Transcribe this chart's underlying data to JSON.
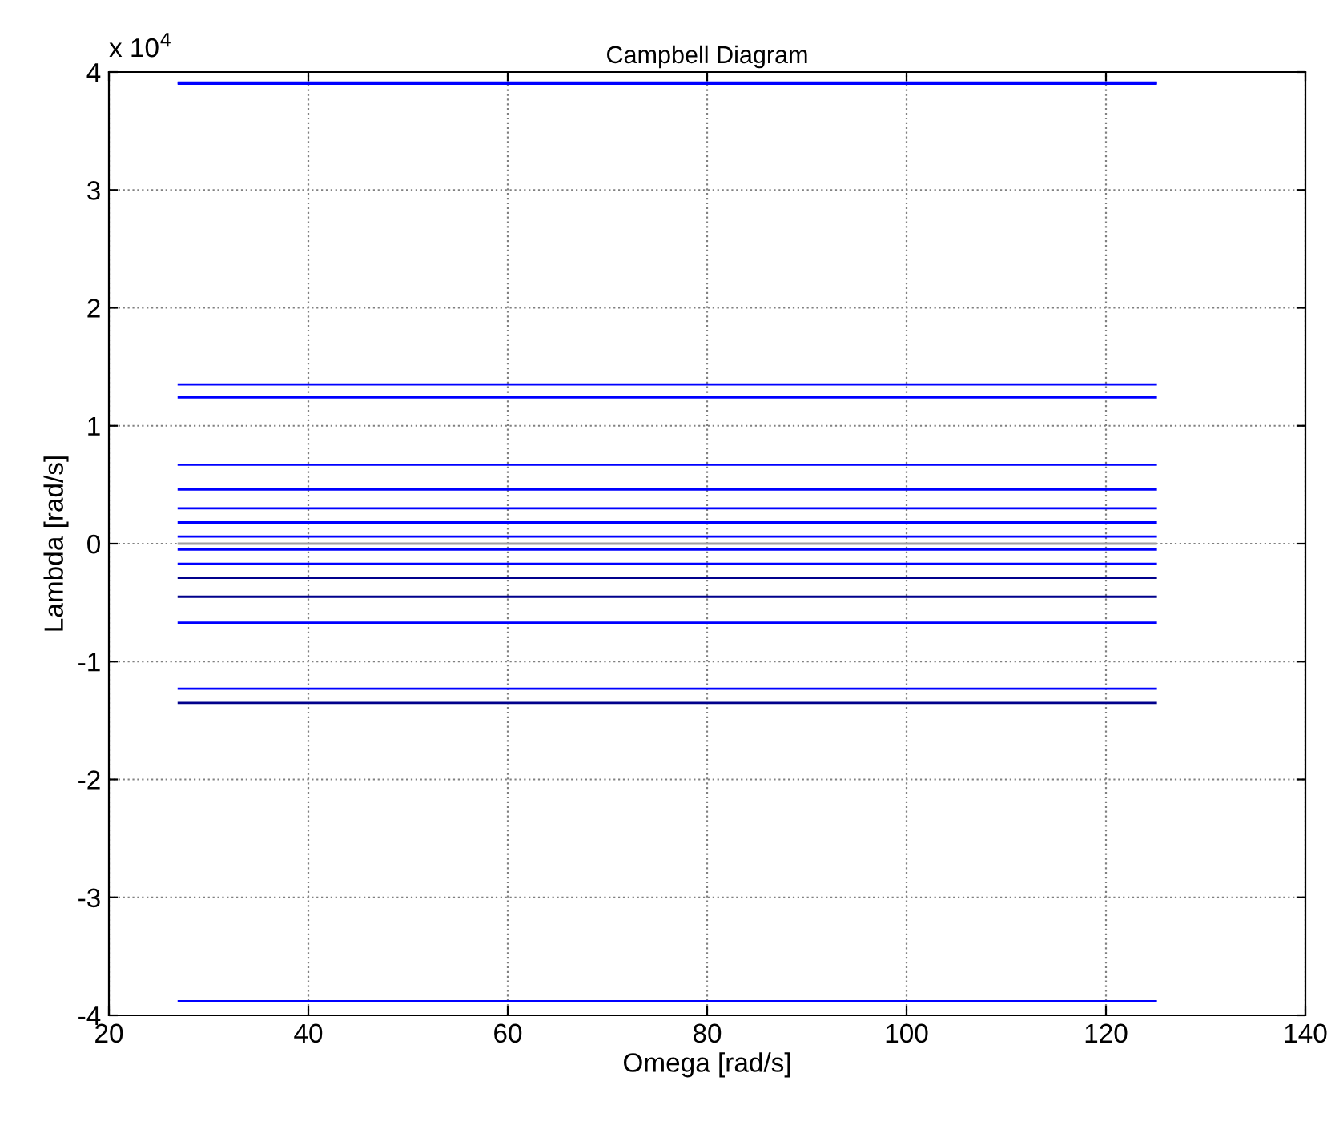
{
  "chart_data": {
    "type": "line",
    "title": "Campbell Diagram",
    "xlabel": "Omega [rad/s]",
    "ylabel": "Lambda [rad/s]",
    "annotations": [
      "x 10$^{4}$"
    ],
    "xlim": [
      20,
      140
    ],
    "xticks": [
      20,
      40,
      60,
      80,
      100,
      120,
      140
    ],
    "ylim": [
      -4,
      4
    ],
    "yticks": [
      -4,
      -3,
      -2,
      -1,
      0,
      1,
      2,
      3,
      4
    ],
    "grid": true,
    "line_style": "solid",
    "marker": "none",
    "x": [
      27,
      125
    ],
    "series": [
      {
        "color": "#0000ff",
        "values": [
          3.91,
          3.91
        ]
      },
      {
        "color": "#0000ff",
        "values": [
          3.9,
          3.9
        ]
      },
      {
        "color": "#0000ff",
        "values": [
          1.35,
          1.35
        ]
      },
      {
        "color": "#0000ff",
        "values": [
          1.24,
          1.24
        ]
      },
      {
        "color": "#0000ff",
        "values": [
          0.67,
          0.67
        ]
      },
      {
        "color": "#0000ff",
        "values": [
          0.46,
          0.46
        ]
      },
      {
        "color": "#0000ff",
        "values": [
          0.3,
          0.3
        ]
      },
      {
        "color": "#0000ff",
        "values": [
          0.18,
          0.18
        ]
      },
      {
        "color": "#0000ff",
        "values": [
          0.06,
          0.06
        ]
      },
      {
        "color": "#a0a0a0",
        "values": [
          0,
          0
        ]
      },
      {
        "color": "#0000ff",
        "values": [
          -0.05,
          -0.05
        ]
      },
      {
        "color": "#0000ff",
        "values": [
          -0.17,
          -0.17
        ]
      },
      {
        "color": "#00008b",
        "values": [
          -0.29,
          -0.29
        ]
      },
      {
        "color": "#00008b",
        "values": [
          -0.45,
          -0.45
        ]
      },
      {
        "color": "#0000ff",
        "values": [
          -0.67,
          -0.67
        ]
      },
      {
        "color": "#0000ff",
        "values": [
          -1.23,
          -1.23
        ]
      },
      {
        "color": "#00008b",
        "values": [
          -1.35,
          -1.35
        ]
      },
      {
        "color": "#0000ff",
        "values": [
          -3.88,
          -3.88
        ]
      }
    ]
  }
}
